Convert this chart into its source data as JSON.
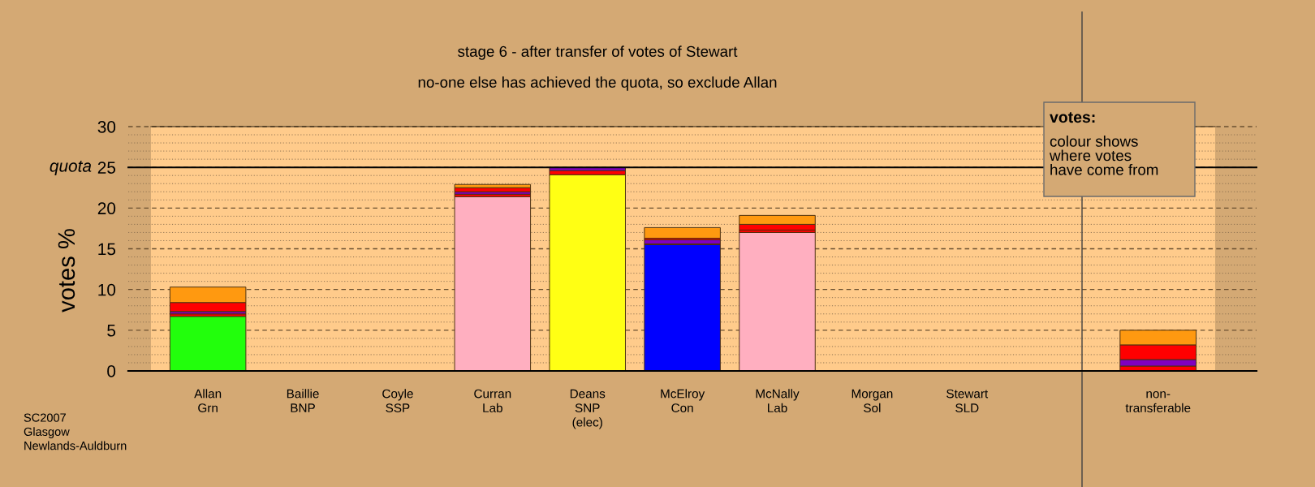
{
  "chart_data": [
    {
      "type": "bar",
      "stacked": true,
      "title": "stage 6 - after transfer of votes of Stewart",
      "subtitle": "no-one else has achieved the quota, so exclude Allan",
      "ylabel": "votes %",
      "categories": [
        "Allan\nGrn",
        "Baillie\nBNP",
        "Coyle\nSSP",
        "Curran\nLab",
        "Deans\nSNP\n(elec)",
        "McElroy\nCon",
        "McNally\nLab",
        "Morgan\nSol",
        "Stewart\nSLD"
      ],
      "series": [
        {
          "colors": [
            "#22ff0c",
            null,
            null,
            "#ffafc0",
            "#ffff14",
            "#0000ff",
            "#ffafc0",
            null,
            null
          ],
          "values": [
            6.7,
            0,
            0,
            21.4,
            24.1,
            15.5,
            17.0,
            0,
            0
          ]
        },
        {
          "color": "#ff0000",
          "values": [
            0.3,
            null,
            null,
            0.3,
            0.5,
            0.1,
            0.3,
            null,
            null
          ]
        },
        {
          "color": "#8000c0",
          "values": [
            0.3,
            null,
            null,
            0.3,
            0.4,
            0.5,
            null,
            null,
            null
          ]
        },
        {
          "color": "#ff0000",
          "values": [
            1.1,
            null,
            null,
            0.5,
            null,
            0.2,
            0.7,
            null,
            null
          ]
        },
        {
          "color": "#ff9910",
          "values": [
            1.9,
            null,
            null,
            0.4,
            null,
            1.3,
            1.1,
            null,
            null
          ]
        }
      ],
      "ylim": [
        0,
        30
      ],
      "yticks": [
        0,
        {
          "value": 1,
          "label": null
        },
        {
          "value": 2,
          "label": null
        },
        {
          "value": 3,
          "label": null
        },
        {
          "value": 4,
          "label": null
        },
        5,
        {
          "value": 6,
          "label": null
        },
        {
          "value": 7,
          "label": null
        },
        {
          "value": 8,
          "label": null
        },
        {
          "value": 9,
          "label": null
        },
        10,
        {
          "value": 11,
          "label": null
        },
        {
          "value": 12,
          "label": null
        },
        {
          "value": 13,
          "label": null
        },
        {
          "value": 14,
          "label": null
        },
        15,
        {
          "value": 16,
          "label": null
        },
        {
          "value": 17,
          "label": null
        },
        {
          "value": 18,
          "label": null
        },
        {
          "value": 19,
          "label": null
        },
        20,
        {
          "value": 21,
          "label": null
        },
        {
          "value": 22,
          "label": null
        },
        {
          "value": 23,
          "label": null
        },
        {
          "value": 24,
          "label": null
        },
        25,
        {
          "value": 26,
          "label": null
        },
        {
          "value": 27,
          "label": null
        },
        {
          "value": 28,
          "label": null
        },
        {
          "value": 29,
          "label": null
        },
        30
      ],
      "grid": true,
      "ref_lines": [
        {
          "axis": "y",
          "value": 25,
          "label": "quota",
          "color": "#000000"
        }
      ],
      "annotations": [
        "votes:",
        "colour shows\nwhere votes\nhave come from",
        "SC2007\nGlasgow\nNewlands-Auldburn"
      ]
    },
    {
      "type": "bar",
      "stacked": true,
      "categories": [
        "non-\ntransferable"
      ],
      "series": [
        {
          "color": "#ff0000",
          "values": [
            0.6
          ]
        },
        {
          "color": "#8000c0",
          "values": [
            0.8
          ]
        },
        {
          "color": "#ff0000",
          "values": [
            1.8
          ]
        },
        {
          "color": "#ff9910",
          "values": [
            1.8
          ]
        }
      ],
      "ylim": [
        0,
        30
      ],
      "yticks": [
        0,
        {
          "value": 1,
          "label": null
        },
        {
          "value": 2,
          "label": null
        },
        {
          "value": 3,
          "label": null
        },
        {
          "value": 4,
          "label": null
        },
        5,
        {
          "value": 6,
          "label": null
        },
        {
          "value": 7,
          "label": null
        },
        {
          "value": 8,
          "label": null
        },
        {
          "value": 9,
          "label": null
        },
        10,
        {
          "value": 11,
          "label": null
        },
        {
          "value": 12,
          "label": null
        },
        {
          "value": 13,
          "label": null
        },
        {
          "value": 14,
          "label": null
        },
        15,
        {
          "value": 16,
          "label": null
        },
        {
          "value": 17,
          "label": null
        },
        {
          "value": 18,
          "label": null
        },
        {
          "value": 19,
          "label": null
        },
        20,
        {
          "value": 21,
          "label": null
        },
        {
          "value": 22,
          "label": null
        },
        {
          "value": 23,
          "label": null
        },
        {
          "value": 24,
          "label": null
        },
        25,
        {
          "value": 26,
          "label": null
        },
        {
          "value": 27,
          "label": null
        },
        {
          "value": 28,
          "label": null
        },
        {
          "value": 29,
          "label": null
        },
        30
      ],
      "grid": true,
      "tick_labels": "x",
      "ref_lines": [
        {
          "axis": "y",
          "value": 25,
          "color": "#000000"
        }
      ]
    }
  ]
}
